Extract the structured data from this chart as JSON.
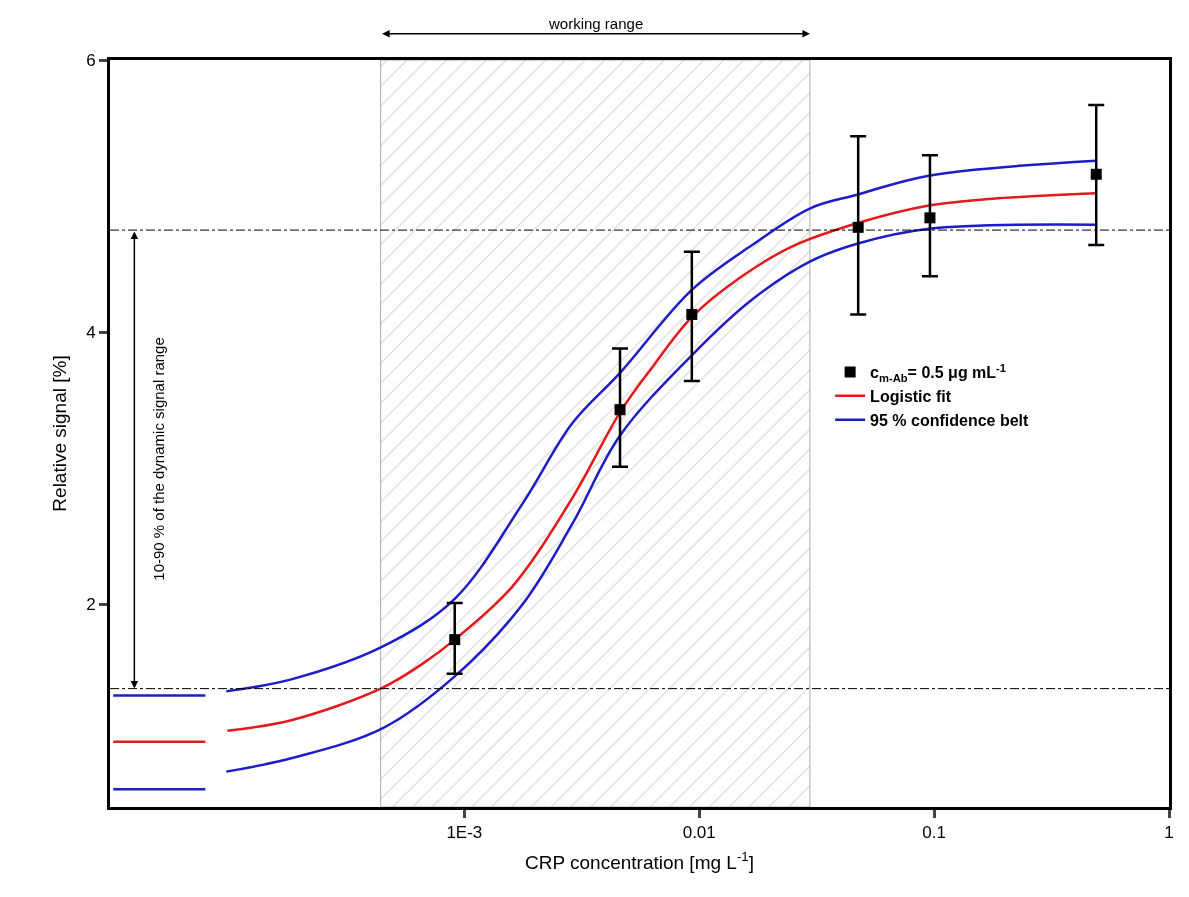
{
  "chart_data": {
    "type": "scatter",
    "xlabel": "CRP concentration [mg L$^{-1}$]",
    "ylabel": "Relative signal [%]",
    "log": "x",
    "xlim": [
      3.1e-05,
      1
    ],
    "ylim": [
      0.51,
      6
    ],
    "xticks": [
      {
        "value": 0.001,
        "label": "1E-3"
      },
      0.01,
      0.1,
      1
    ],
    "yticks": [
      2,
      4,
      6
    ],
    "grid": false,
    "legend": "right",
    "series": [
      {
        "name": "c$_{m-Ab}$= 0.5 μg mL$^{-1}$",
        "marker": "square",
        "color": "#000000",
        "x": [
          0.00091,
          0.0046,
          0.0093,
          0.0475,
          0.096,
          0.49
        ],
        "values": [
          1.74,
          3.43,
          4.13,
          4.77,
          4.84,
          5.16
        ],
        "errors": [
          [
            1.49,
            2.01
          ],
          [
            3.01,
            3.88
          ],
          [
            3.64,
            4.59
          ],
          [
            4.13,
            5.44
          ],
          [
            4.41,
            5.3
          ],
          [
            4.64,
            5.67
          ]
        ]
      },
      {
        "name": "Logistic fit",
        "type": "line",
        "marker": "none",
        "color": "#e31a1c",
        "x": [
          9.8e-05,
          0.000185,
          0.00044,
          0.00066,
          0.00091,
          0.0016,
          0.00288,
          0.0046,
          0.0063,
          0.0093,
          0.0152,
          0.0249,
          0.047,
          0.095,
          0.177,
          0.489
        ],
        "values": [
          1.07,
          1.15,
          1.38,
          1.56,
          1.74,
          2.13,
          2.78,
          3.41,
          3.74,
          4.11,
          4.41,
          4.63,
          4.8,
          4.93,
          4.98,
          5.02
        ]
      },
      {
        "name": "95 % confidence belt",
        "type": "line",
        "marker": "none",
        "color": "#1c1cc8",
        "x": [
          9.7e-05,
          0.000185,
          0.00045,
          0.00091,
          0.00177,
          0.00288,
          0.0046,
          0.0093,
          0.0168,
          0.0297,
          0.047,
          0.095,
          0.489
        ],
        "values": [
          1.36,
          1.45,
          1.69,
          2.04,
          2.74,
          3.33,
          3.7,
          4.31,
          4.64,
          4.91,
          5.01,
          5.15,
          5.26
        ]
      },
      {
        "type": "line",
        "marker": "none",
        "color": "#1c1cc8",
        "x": [
          9.7e-05,
          0.000185,
          0.00045,
          0.00091,
          0.00177,
          0.00288,
          0.0046,
          0.0093,
          0.0168,
          0.0297,
          0.047,
          0.095,
          0.489
        ],
        "values": [
          0.77,
          0.87,
          1.09,
          1.47,
          2.0,
          2.59,
          3.24,
          3.83,
          4.24,
          4.52,
          4.65,
          4.76,
          4.79
        ]
      },
      {
        "type": "line",
        "marker": "none",
        "color": "#e31a1c",
        "x": [
          3.2e-05,
          7.9e-05
        ],
        "values": [
          0.99,
          0.99
        ]
      },
      {
        "type": "line",
        "marker": "none",
        "color": "#1c1cc8",
        "x": [
          3.2e-05,
          7.9e-05
        ],
        "values": [
          1.33,
          1.33
        ]
      },
      {
        "type": "line",
        "marker": "none",
        "color": "#1c1cc8",
        "x": [
          3.2e-05,
          7.9e-05
        ],
        "values": [
          0.64,
          0.64
        ]
      }
    ],
    "ref_lines": [
      {
        "axis": "y",
        "value": 4.75,
        "color": "#000000",
        "line_style": "dashdot"
      },
      {
        "axis": "y",
        "value": 1.38,
        "color": "#000000",
        "line_style": "dashdot"
      }
    ],
    "bands": [
      {
        "axis": "x",
        "from": 0.00044,
        "to": 0.0296,
        "color": "#aaaaaa"
      }
    ],
    "annotations": [
      "working range",
      "10-90 % of the dynamic signal range"
    ]
  }
}
